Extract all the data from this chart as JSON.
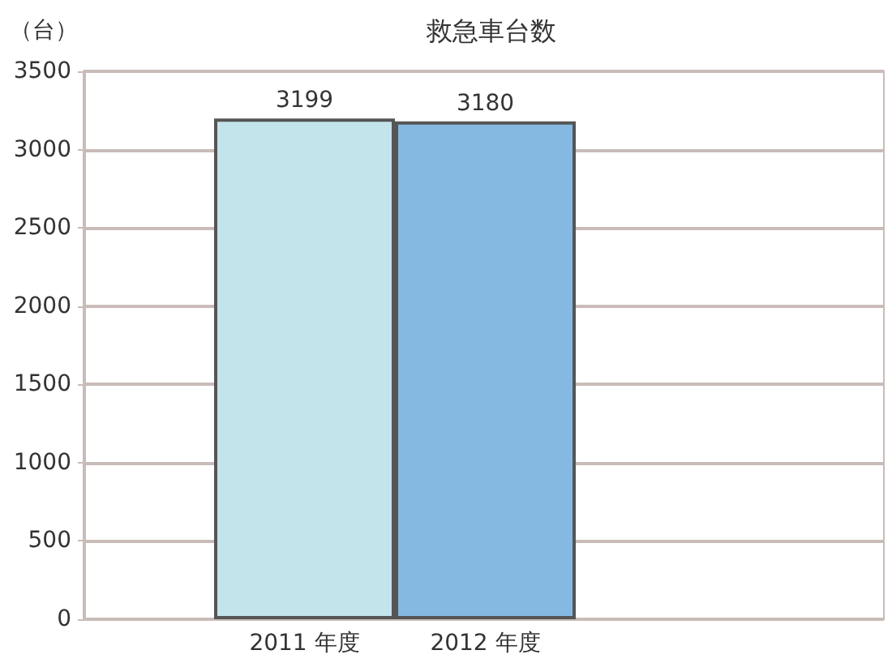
{
  "chart_data": {
    "type": "bar",
    "title": "救急車台数",
    "ylabel": "（台）",
    "categories": [
      "2011 年度",
      "2012 年度"
    ],
    "values": [
      3199,
      3180
    ],
    "colors": [
      "#c4e4ec",
      "#85b9e2"
    ],
    "ylim": [
      0,
      3500
    ],
    "yticks": [
      0,
      500,
      1000,
      1500,
      2000,
      2500,
      3000,
      3500
    ],
    "grid": "y",
    "data_labels": true
  }
}
